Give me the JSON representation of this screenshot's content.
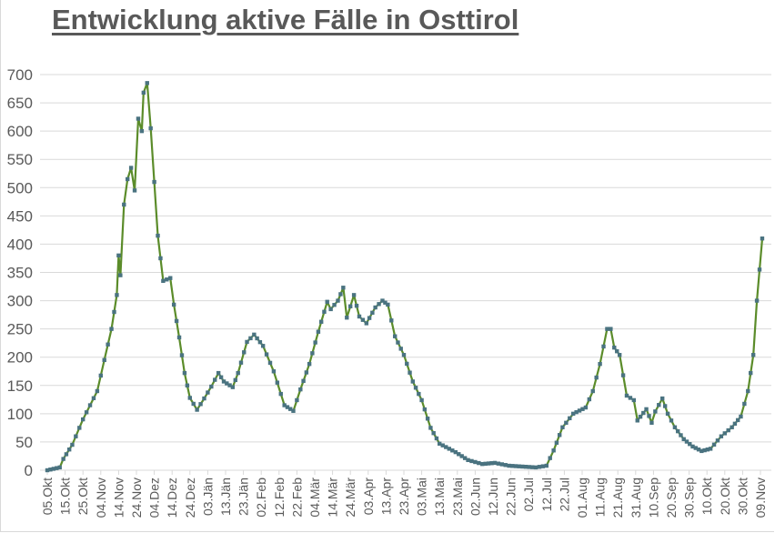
{
  "title": "Entwicklung aktive Fälle in Osttirol",
  "colors": {
    "line": "#5b8c2a",
    "marker": "#4a7380",
    "grid": "#d9d9d9",
    "text": "#595959"
  },
  "chart_data": {
    "type": "line",
    "title": "Entwicklung aktive Fälle in Osttirol",
    "xlabel": "",
    "ylabel": "",
    "ylim": [
      0,
      700
    ],
    "yticks": [
      0,
      50,
      100,
      150,
      200,
      250,
      300,
      350,
      400,
      450,
      500,
      550,
      600,
      650,
      700
    ],
    "grid": true,
    "legend": "none",
    "x_tick_labels": [
      "05.Okt",
      "15.Okt",
      "25.Okt",
      "04.Nov",
      "14.Nov",
      "24.Nov",
      "04.Dez",
      "14.Dez",
      "24.Dez",
      "03.Jän",
      "13.Jän",
      "23.Jän",
      "02.Feb",
      "12.Feb",
      "22.Feb",
      "04.Mär",
      "14.Mär",
      "24.Mär",
      "03.Apr",
      "13.Apr",
      "23.Apr",
      "03.Mai",
      "13.Mai",
      "23.Mai",
      "02.Jun",
      "12.Jun",
      "22.Jun",
      "02.Jul",
      "12.Jul",
      "22.Jul",
      "01.Aug",
      "11.Aug",
      "21.Aug",
      "31.Aug",
      "10.Sep",
      "20.Sep",
      "30.Sep",
      "10.Okt",
      "20.Okt",
      "30.Okt",
      "09.Nov"
    ],
    "x_tick_interval_days": 10,
    "series": [
      {
        "name": "aktive Fälle",
        "day_offset_from_05Okt": [
          0,
          7,
          9,
          14,
          20,
          28,
          32,
          36,
          39,
          40,
          41,
          43,
          45,
          47,
          49,
          51,
          53,
          54,
          56,
          58,
          60,
          62,
          65,
          69,
          71,
          74,
          77,
          80,
          84,
          88,
          92,
          96,
          99,
          104,
          107,
          112,
          116,
          121,
          127,
          133,
          138,
          142,
          147,
          152,
          157,
          159,
          163,
          166,
          168,
          172,
          175,
          179,
          184,
          188,
          191,
          195,
          200,
          205,
          210,
          215,
          220,
          229,
          236,
          244,
          251,
          259,
          274,
          280,
          284,
          289,
          295,
          302,
          306,
          310,
          314,
          316,
          318,
          321,
          325,
          329,
          331,
          336,
          339,
          341,
          345,
          348,
          352,
          357,
          362,
          367,
          372,
          378,
          384,
          389,
          393,
          396,
          398,
          401
        ],
        "values": [
          0,
          5,
          20,
          45,
          90,
          140,
          195,
          250,
          310,
          380,
          345,
          470,
          515,
          535,
          495,
          622,
          600,
          668,
          685,
          605,
          510,
          415,
          335,
          340,
          293,
          235,
          172,
          128,
          107,
          127,
          148,
          172,
          157,
          147,
          172,
          227,
          240,
          220,
          175,
          115,
          105,
          143,
          188,
          245,
          298,
          285,
          300,
          323,
          270,
          310,
          272,
          260,
          288,
          300,
          293,
          237,
          204,
          157,
          124,
          75,
          47,
          32,
          18,
          11,
          13,
          8,
          5,
          8,
          35,
          76,
          100,
          111,
          140,
          188,
          250,
          250,
          217,
          204,
          132,
          124,
          88,
          108,
          84,
          104,
          127,
          100,
          76,
          55,
          42,
          34,
          38,
          60,
          76,
          95,
          140,
          204,
          300,
          410
        ]
      }
    ]
  }
}
